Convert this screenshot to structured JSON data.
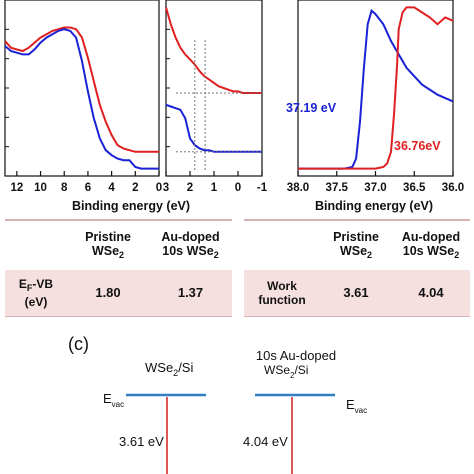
{
  "chart_data": [
    {
      "panel": "valence-band-wide",
      "type": "line",
      "xlabel": "",
      "xlim": [
        13,
        0
      ],
      "x_reversed": true,
      "xticks": [
        "12",
        "10",
        "8",
        "6",
        "4",
        "2",
        "0"
      ],
      "series": [
        {
          "color": "#e02020",
          "x": [
            13,
            12.5,
            12,
            11.5,
            11,
            10.5,
            10,
            9.5,
            9,
            8.5,
            8,
            7.5,
            7,
            6.5,
            6,
            5.5,
            5,
            4.5,
            4,
            3.5,
            3,
            2.5,
            2,
            1.5,
            1,
            0.5,
            0
          ],
          "y": [
            0.78,
            0.74,
            0.73,
            0.72,
            0.74,
            0.77,
            0.8,
            0.82,
            0.84,
            0.85,
            0.86,
            0.86,
            0.85,
            0.8,
            0.68,
            0.54,
            0.4,
            0.3,
            0.22,
            0.16,
            0.14,
            0.13,
            0.12,
            0.12,
            0.12,
            0.12,
            0.12
          ]
        },
        {
          "color": "#1a22d6",
          "x": [
            13,
            12.5,
            12,
            11.5,
            11,
            10.5,
            10,
            9.5,
            9,
            8.5,
            8,
            7.5,
            7,
            6.5,
            6,
            5.5,
            5,
            4.5,
            4,
            3.5,
            3,
            2.5,
            2,
            1.5,
            1,
            0.5,
            0
          ],
          "y": [
            0.75,
            0.72,
            0.71,
            0.7,
            0.7,
            0.73,
            0.77,
            0.8,
            0.82,
            0.84,
            0.85,
            0.84,
            0.8,
            0.66,
            0.48,
            0.32,
            0.2,
            0.13,
            0.1,
            0.08,
            0.07,
            0.07,
            0.03,
            0.02,
            0.02,
            0.02,
            0.02
          ]
        }
      ]
    },
    {
      "panel": "valence-band-edge",
      "type": "line",
      "xlabel": "",
      "xlim": [
        3,
        -1
      ],
      "x_reversed": true,
      "xticks": [
        "3",
        "2",
        "1",
        "0",
        "-1"
      ],
      "series": [
        {
          "color": "#e02020",
          "x": [
            3,
            2.8,
            2.6,
            2.4,
            2.2,
            2.0,
            1.8,
            1.6,
            1.4,
            1.2,
            1.0,
            0.8,
            0.6,
            0.4,
            0.2,
            0,
            -0.2,
            -0.4,
            -0.6,
            -0.8,
            -1
          ],
          "y": [
            0.98,
            0.88,
            0.8,
            0.74,
            0.7,
            0.67,
            0.64,
            0.6,
            0.57,
            0.55,
            0.53,
            0.51,
            0.5,
            0.49,
            0.48,
            0.48,
            0.47,
            0.47,
            0.47,
            0.47,
            0.47
          ]
        },
        {
          "color": "#1a22d6",
          "x": [
            3,
            2.8,
            2.6,
            2.4,
            2.2,
            2.0,
            1.8,
            1.6,
            1.4,
            1.2,
            1.0,
            0.8,
            0.6,
            0.4,
            0.2,
            0,
            -0.2,
            -0.4,
            -0.6,
            -0.8,
            -1
          ],
          "y": [
            0.4,
            0.39,
            0.38,
            0.37,
            0.32,
            0.2,
            0.16,
            0.14,
            0.13,
            0.13,
            0.12,
            0.12,
            0.12,
            0.12,
            0.12,
            0.12,
            0.12,
            0.12,
            0.12,
            0.12,
            0.12
          ]
        }
      ],
      "guide_lines": [
        {
          "color": "#e02020",
          "x_intercept": 1.37
        },
        {
          "color": "#1a22d6",
          "x_intercept": 1.8
        }
      ]
    },
    {
      "panel": "secondary-electron-cutoff",
      "type": "line",
      "xlabel": "Binding energy (eV)",
      "xlim": [
        38.0,
        36.0
      ],
      "x_reversed": true,
      "xticks": [
        "38.0",
        "37.5",
        "37.0",
        "36.5",
        "36.0"
      ],
      "series": [
        {
          "color": "#1a22d6",
          "x": [
            38.0,
            37.6,
            37.4,
            37.3,
            37.25,
            37.2,
            37.15,
            37.1,
            37.05,
            37.0,
            36.9,
            36.8,
            36.7,
            36.6,
            36.4,
            36.2,
            36.0
          ],
          "y": [
            0.02,
            0.02,
            0.02,
            0.03,
            0.08,
            0.3,
            0.62,
            0.88,
            0.96,
            0.94,
            0.88,
            0.78,
            0.7,
            0.62,
            0.52,
            0.46,
            0.42
          ]
        },
        {
          "color": "#e02020",
          "x": [
            38.0,
            37.4,
            37.0,
            36.9,
            36.85,
            36.8,
            36.76,
            36.72,
            36.7,
            36.65,
            36.6,
            36.5,
            36.4,
            36.3,
            36.2,
            36.1,
            36.0
          ],
          "y": [
            0.02,
            0.02,
            0.02,
            0.03,
            0.05,
            0.12,
            0.35,
            0.65,
            0.85,
            0.95,
            0.98,
            0.98,
            0.95,
            0.92,
            0.88,
            0.92,
            0.9
          ]
        }
      ],
      "annotations": [
        {
          "text": "37.19 eV",
          "color": "#1a22d6"
        },
        {
          "text": "36.76eV",
          "color": "#e02020"
        }
      ]
    }
  ],
  "axis_label_left": "Binding energy (eV)",
  "axis_label_right": "Binding energy (eV)",
  "table_left": {
    "col1": "Pristine",
    "col1b": "WSe",
    "col1sub": "2",
    "col2": "Au-doped",
    "col2b": "10s WSe",
    "col2sub": "2",
    "row_label_a": "E",
    "row_label_sub": "F",
    "row_label_b": "-VB",
    "row_label_c": "(eV)",
    "v1": "1.80",
    "v2": "1.37"
  },
  "table_right": {
    "col1": "Pristine",
    "col1b": "WSe",
    "col1sub": "2",
    "col2": "Au-doped",
    "col2b": "10s WSe",
    "col2sub": "2",
    "row_label_a": "Work",
    "row_label_b": "function",
    "v1": "3.61",
    "v2": "4.04"
  },
  "diagram": {
    "panel_label": "(c)",
    "left_title": "WSe",
    "left_title_sub": "2",
    "left_title_tail": "/Si",
    "right_title_top": "10s Au-doped",
    "right_title": "WSe",
    "right_title_sub": "2",
    "right_title_tail": "/Si",
    "evac_left": "E",
    "evac_left_sub": "vac",
    "evac_right": "E",
    "evac_right_sub": "vac",
    "wf_left": "3.61 eV",
    "wf_right": "4.04 eV",
    "level_color": "#2f7fc1",
    "arrow_color": "#d02020"
  }
}
